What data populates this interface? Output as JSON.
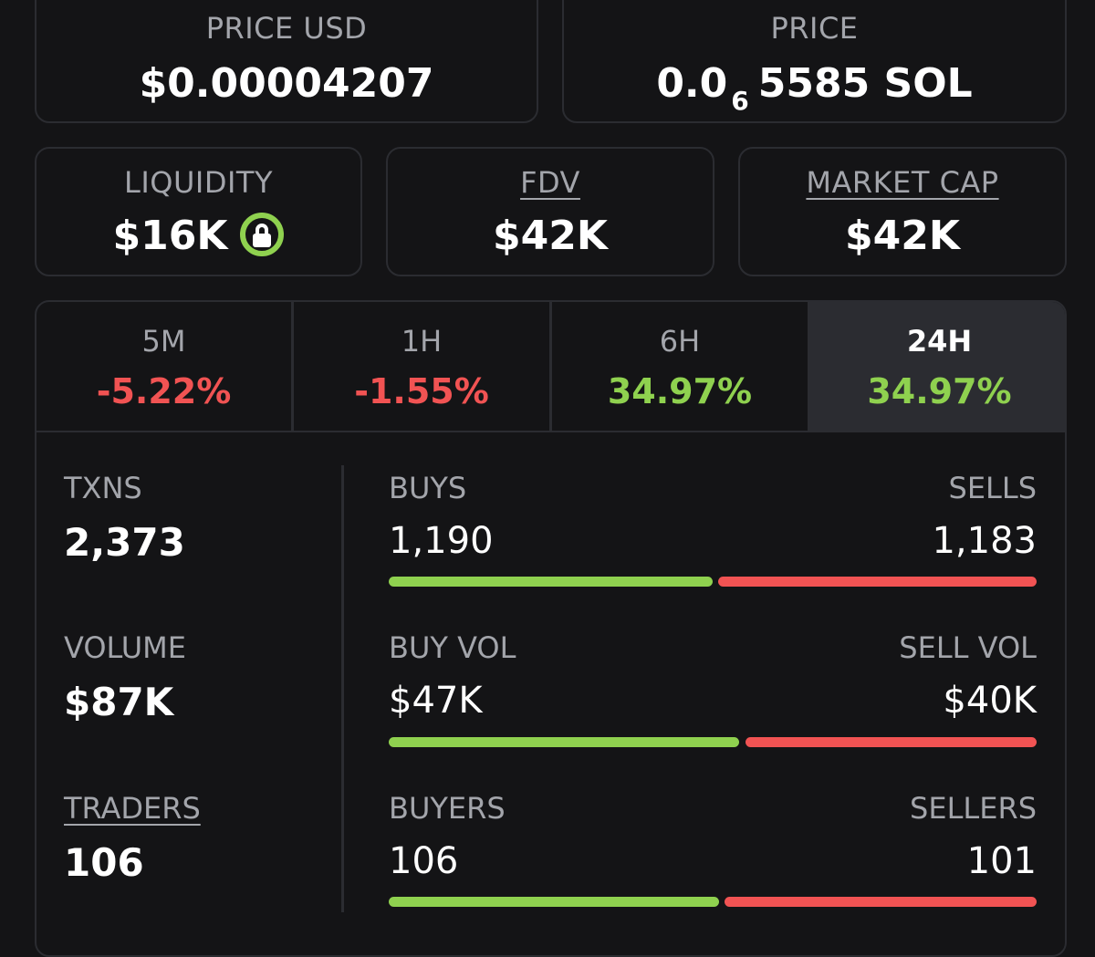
{
  "price_usd": {
    "label": "PRICE USD",
    "value": "$0.00004207"
  },
  "price_native": {
    "label": "PRICE",
    "prefix": "0.0",
    "subscript": "6",
    "digits": "5585",
    "unit": "SOL"
  },
  "liquidity": {
    "label": "LIQUIDITY",
    "value": "$16K",
    "icon": "lock-icon"
  },
  "fdv": {
    "label": "FDV",
    "value": "$42K"
  },
  "market_cap": {
    "label": "MARKET CAP",
    "value": "$42K"
  },
  "tabs": [
    {
      "label": "5M",
      "change": "-5.22%"
    },
    {
      "label": "1H",
      "change": "-1.55%"
    },
    {
      "label": "6H",
      "change": "34.97%"
    },
    {
      "label": "24H",
      "change": "34.97%"
    }
  ],
  "active_tab": "24H",
  "stats": {
    "txns": {
      "label": "TXNS",
      "value": "2,373"
    },
    "volume": {
      "label": "VOLUME",
      "value": "$87K"
    },
    "traders": {
      "label": "TRADERS",
      "value": "106"
    }
  },
  "splits": {
    "buys": {
      "label": "BUYS",
      "value": "1,190"
    },
    "sells": {
      "label": "SELLS",
      "value": "1,183"
    },
    "buy_vol": {
      "label": "BUY VOL",
      "value": "$47K"
    },
    "sell_vol": {
      "label": "SELL VOL",
      "value": "$40K"
    },
    "buyers": {
      "label": "BUYERS",
      "value": "106"
    },
    "sellers": {
      "label": "SELLERS",
      "value": "101"
    }
  },
  "colors": {
    "positive": "#8fd14f",
    "negative": "#f15353",
    "background": "#141416",
    "border": "#2b2c31"
  }
}
